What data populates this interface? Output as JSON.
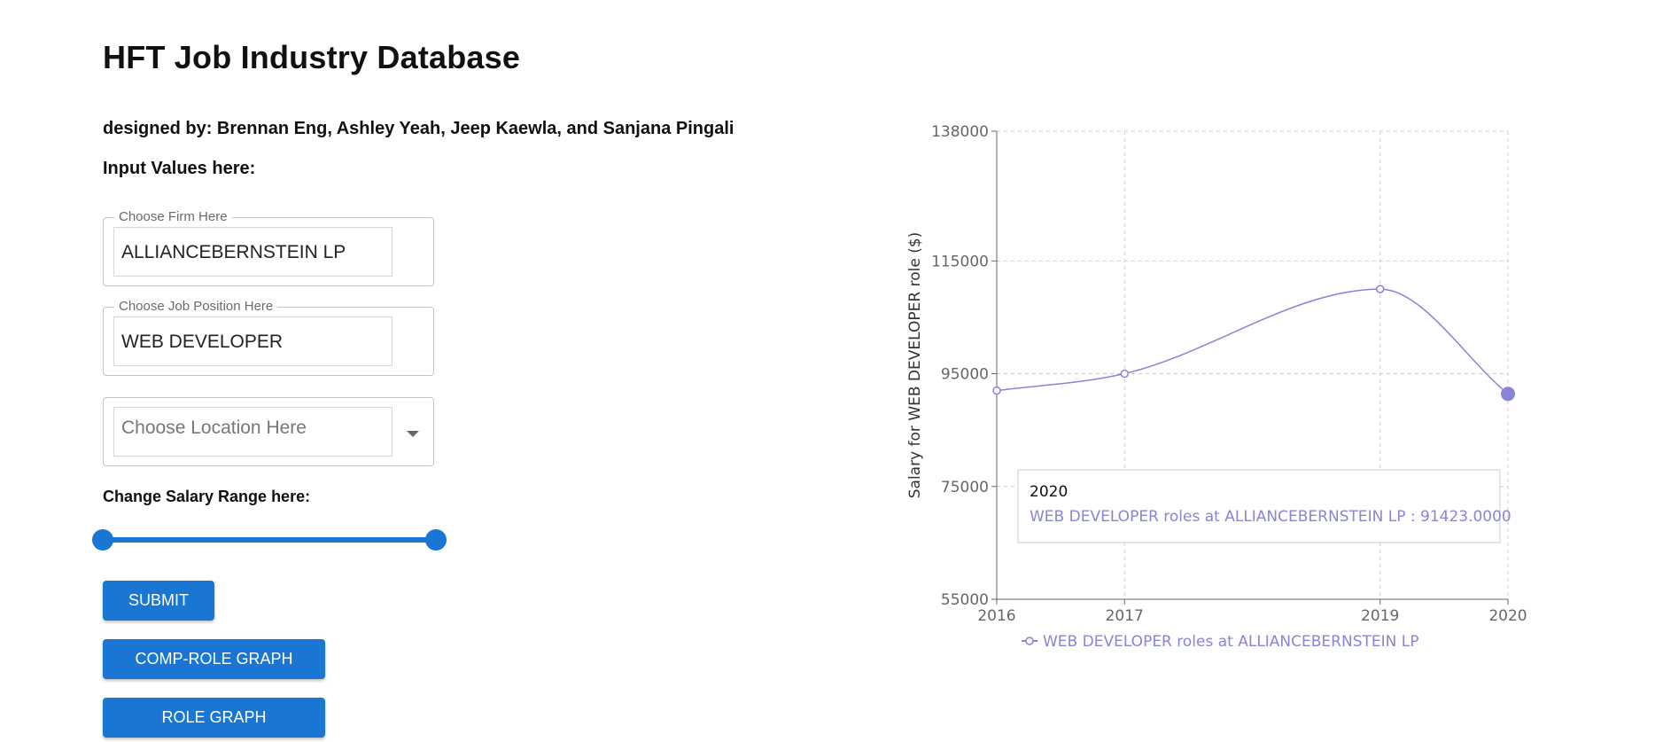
{
  "header": {
    "title": "HFT Job Industry Database",
    "designed_by": "designed by: Brennan Eng, Ashley Yeah, Jeep Kaewla, and Sanjana Pingali",
    "input_label": "Input Values here:"
  },
  "form": {
    "firm": {
      "legend": "Choose Firm Here",
      "value": "ALLIANCEBERNSTEIN LP"
    },
    "position": {
      "legend": "Choose Job Position Here",
      "value": "WEB DEVELOPER"
    },
    "location": {
      "placeholder": "Choose Location Here",
      "value": ""
    },
    "salary_label": "Change Salary Range here:",
    "salary_range": {
      "min_fraction": 0.0,
      "max_fraction": 1.0
    }
  },
  "buttons": {
    "submit": "SUBMIT",
    "comp_role_graph": "COMP-ROLE GRAPH",
    "role_graph": "ROLE GRAPH"
  },
  "colors": {
    "primary": "#1976d2",
    "series": "#8884d8",
    "grid": "#cccccc",
    "axis": "#666666"
  },
  "chart_data": {
    "type": "line",
    "x": [
      2016,
      2017,
      2019,
      2020
    ],
    "x_ticks": [
      "2016",
      "2017",
      "2019",
      "2020"
    ],
    "y_ticks": [
      "138000",
      "115000",
      "95000",
      "75000",
      "55000"
    ],
    "ylim": [
      55000,
      138000
    ],
    "ylabel": "Salary for WEB DEVELOPER role ($)",
    "xlabel": "",
    "grid": true,
    "curve": "monotone",
    "series": [
      {
        "name": "WEB DEVELOPER roles at ALLIANCEBERNSTEIN LP",
        "values": [
          92000,
          95000,
          110000,
          91423
        ],
        "color": "#8884d8"
      }
    ],
    "active_index": 3,
    "tooltip": {
      "label": "2020",
      "text": "WEB DEVELOPER roles at ALLIANCEBERNSTEIN LP : 91423.0000"
    },
    "legend_position": "bottom"
  }
}
